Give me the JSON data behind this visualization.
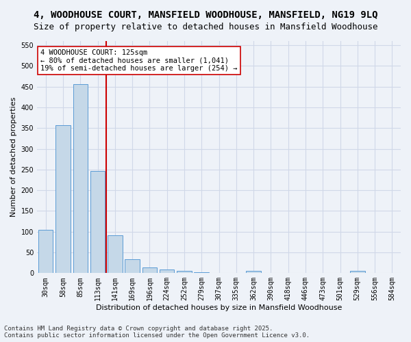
{
  "title": "4, WOODHOUSE COURT, MANSFIELD WOODHOUSE, MANSFIELD, NG19 9LQ",
  "subtitle": "Size of property relative to detached houses in Mansfield Woodhouse",
  "xlabel": "Distribution of detached houses by size in Mansfield Woodhouse",
  "ylabel": "Number of detached properties",
  "bar_values": [
    105,
    357,
    456,
    247,
    91,
    33,
    14,
    9,
    5,
    2,
    0,
    0,
    5,
    0,
    0,
    0,
    0,
    0,
    5,
    0,
    0
  ],
  "categories": [
    "30sqm",
    "58sqm",
    "85sqm",
    "113sqm",
    "141sqm",
    "169sqm",
    "196sqm",
    "224sqm",
    "252sqm",
    "279sqm",
    "307sqm",
    "335sqm",
    "362sqm",
    "390sqm",
    "418sqm",
    "446sqm",
    "473sqm",
    "501sqm",
    "529sqm",
    "556sqm",
    "584sqm"
  ],
  "bar_color": "#c5d8e8",
  "bar_edge_color": "#5b9bd5",
  "grid_color": "#d0d8e8",
  "background_color": "#eef2f8",
  "vline_x": 3.5,
  "vline_color": "#cc0000",
  "annotation_text": "4 WOODHOUSE COURT: 125sqm\n← 80% of detached houses are smaller (1,041)\n19% of semi-detached houses are larger (254) →",
  "annotation_box_color": "#ffffff",
  "annotation_box_edge": "#cc0000",
  "ylim": [
    0,
    560
  ],
  "yticks": [
    0,
    50,
    100,
    150,
    200,
    250,
    300,
    350,
    400,
    450,
    500,
    550
  ],
  "footer_line1": "Contains HM Land Registry data © Crown copyright and database right 2025.",
  "footer_line2": "Contains public sector information licensed under the Open Government Licence v3.0.",
  "title_fontsize": 10,
  "subtitle_fontsize": 9,
  "axis_label_fontsize": 8,
  "tick_fontsize": 7,
  "annotation_fontsize": 7.5,
  "footer_fontsize": 6.5
}
